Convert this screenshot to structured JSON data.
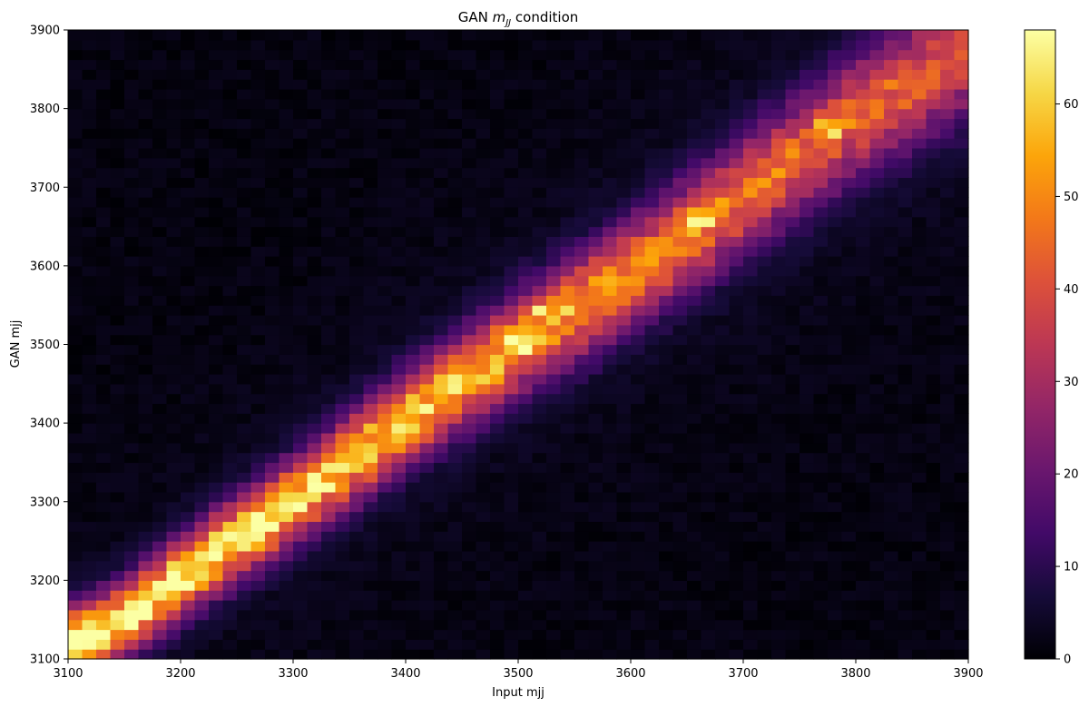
{
  "chart_data": {
    "type": "heatmap",
    "title": "GAN m_jj condition",
    "title_parts": {
      "prefix": "GAN ",
      "math_base": "m",
      "math_sub": "JJ",
      "suffix": " condition"
    },
    "xlabel": "Input mjj",
    "ylabel": "GAN mjj",
    "xlim": [
      3100,
      3900
    ],
    "ylim": [
      3100,
      3900
    ],
    "x_ticks": [
      "3100",
      "3200",
      "3300",
      "3400",
      "3500",
      "3600",
      "3700",
      "3800",
      "3900"
    ],
    "y_ticks": [
      "3100",
      "3200",
      "3300",
      "3400",
      "3500",
      "3600",
      "3700",
      "3800",
      "3900"
    ],
    "bins": 64,
    "bin_width": 12.5,
    "colormap": "inferno",
    "colorbar": {
      "min": 0,
      "max": 68,
      "ticks": [
        "0",
        "10",
        "20",
        "30",
        "40",
        "50",
        "60"
      ]
    },
    "ridge": {
      "description_x": "Input mjj",
      "points": [
        {
          "x": 3100,
          "y": 3120
        },
        {
          "x": 3150,
          "y": 3150
        },
        {
          "x": 3200,
          "y": 3205
        },
        {
          "x": 3300,
          "y": 3300
        },
        {
          "x": 3400,
          "y": 3405
        },
        {
          "x": 3500,
          "y": 3500
        },
        {
          "x": 3600,
          "y": 3590
        },
        {
          "x": 3700,
          "y": 3690
        },
        {
          "x": 3800,
          "y": 3790
        },
        {
          "x": 3900,
          "y": 3875
        }
      ],
      "peak_count_low": 62,
      "peak_count_high": 34,
      "width_low": 30,
      "width_high": 55
    },
    "hot_spots": [
      {
        "x": 3145,
        "y": 3145,
        "value": 66
      },
      {
        "x": 3200,
        "y": 3200,
        "value": 67
      },
      {
        "x": 3295,
        "y": 3295,
        "value": 68
      },
      {
        "x": 3495,
        "y": 3495,
        "value": 64
      },
      {
        "x": 3270,
        "y": 3270,
        "value": 62
      },
      {
        "x": 3530,
        "y": 3545,
        "value": 58
      },
      {
        "x": 3665,
        "y": 3665,
        "value": 56
      },
      {
        "x": 3780,
        "y": 3775,
        "value": 54
      }
    ]
  }
}
